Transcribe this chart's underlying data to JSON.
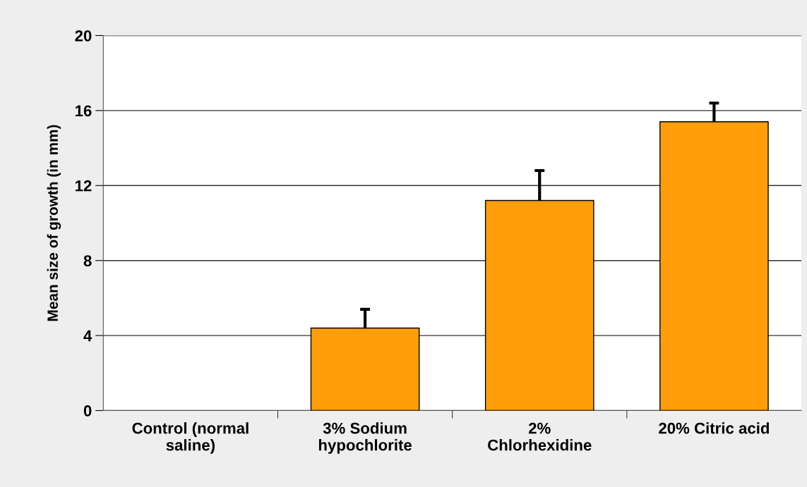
{
  "chart_data": {
    "type": "bar",
    "ylabel": "Mean size of growth (in mm)",
    "categories": [
      "Control (normal\nsaline)",
      "3% Sodium\nhypochlorite",
      "2%\nChlorhexidine",
      "20% Citric acid"
    ],
    "values": [
      0,
      4.4,
      11.2,
      15.4
    ],
    "errors": [
      null,
      [
        4.4,
        5.4
      ],
      [
        11.2,
        12.8
      ],
      [
        15.4,
        16.4
      ]
    ],
    "color": "#ff9e08",
    "ylim": [
      0,
      20
    ],
    "yticks": [
      0,
      4,
      8,
      12,
      16,
      20
    ],
    "grid": "y"
  }
}
